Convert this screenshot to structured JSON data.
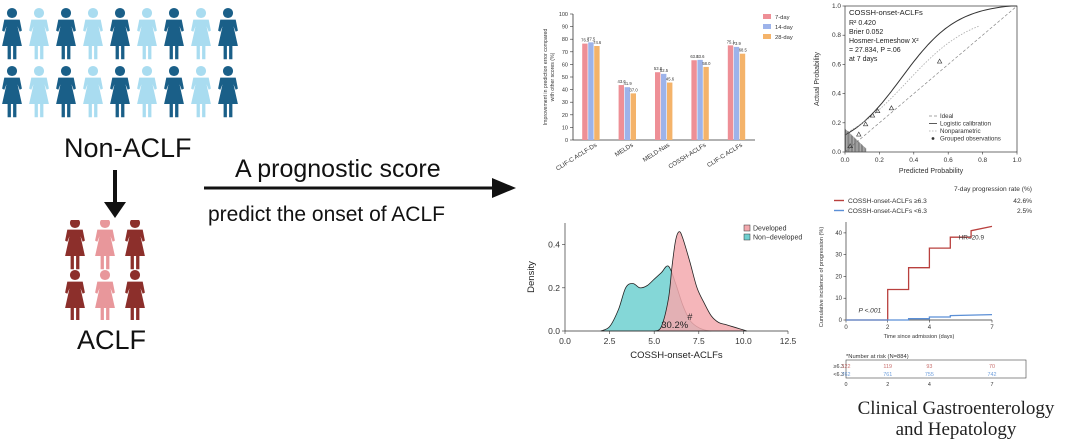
{
  "left": {
    "non_aclf_label": "Non-ACLF",
    "aclf_label": "ACLF",
    "arrow_text_1": "A prognostic score",
    "arrow_text_2": "predict the onset of ACLF",
    "colors": {
      "dark_blue": "#1a5f88",
      "light_blue": "#a9dcf0",
      "dark_red": "#8c2f2b",
      "light_red": "#e8979b"
    }
  },
  "bar_chart": {
    "chart_data": {
      "type": "bar",
      "categories": [
        "CLIF-C ACLF-Ds",
        "MELDs",
        "MELD-Nas",
        "COSSH-ACLFs",
        "CLIF-C ACLFs"
      ],
      "series": [
        {
          "name": "7-day",
          "color": "#ee8f96",
          "values": [
            76.5,
            43.6,
            53.8,
            63.3,
            75.1
          ]
        },
        {
          "name": "14-day",
          "color": "#9db3ea",
          "values": [
            77.5,
            41.9,
            52.5,
            63.6,
            73.9
          ]
        },
        {
          "name": "28-day",
          "color": "#f4b36a",
          "values": [
            74.6,
            37.0,
            45.6,
            58.0,
            68.5
          ]
        }
      ],
      "data_labels": [
        "76.5",
        "77.5",
        "74.6",
        "43.6",
        "41.9",
        "37.0",
        "53.8",
        "52.5",
        "45.6",
        "63.3",
        "63.6",
        "58.0",
        "75.1",
        "73.9",
        "68.5"
      ],
      "ylabel": "Improvement in prediction error compared with other scores (%)",
      "yticks": [
        "0",
        "10",
        "20",
        "30",
        "40",
        "50",
        "60",
        "70",
        "80",
        "90",
        "100"
      ],
      "ylim": [
        0,
        100
      ]
    }
  },
  "calibration": {
    "chart_data": {
      "type": "line",
      "title": "COSSH-onset-ACLFs",
      "stats": [
        "R²   0.420",
        "Brier 0.052",
        "Hosmer-Lemeshow X²",
        "= 27.834, P =.06",
        "at 7 days"
      ],
      "xlabel": "Predicted Probability",
      "ylabel": "Actual Probability",
      "xticks": [
        "0.0",
        "0.2",
        "0.4",
        "0.6",
        "0.8",
        "1.0"
      ],
      "yticks": [
        "0.0",
        "0.2",
        "0.4",
        "0.6",
        "0.8",
        "1.0"
      ],
      "xlim": [
        0,
        1
      ],
      "ylim": [
        0,
        1
      ],
      "legend": [
        "Ideal",
        "Logistic calibration",
        "Nonparametric",
        "Grouped observations"
      ],
      "grouped_observations": [
        [
          0.03,
          0.04
        ],
        [
          0.08,
          0.12
        ],
        [
          0.12,
          0.19
        ],
        [
          0.16,
          0.25
        ],
        [
          0.19,
          0.28
        ],
        [
          0.27,
          0.3
        ],
        [
          0.55,
          0.62
        ]
      ]
    }
  },
  "density": {
    "chart_data": {
      "type": "area",
      "xlabel": "COSSH-onset-ACLFs",
      "ylabel": "Density",
      "xticks": [
        "0.0",
        "2.5",
        "5.0",
        "7.5",
        "10.0",
        "12.5"
      ],
      "yticks": [
        "0.0",
        "0.2",
        "0.4"
      ],
      "xlim": [
        0,
        12.5
      ],
      "ylim": [
        0,
        0.5
      ],
      "legend": [
        "Developed",
        "Non−developed"
      ],
      "annotation": "30.2%",
      "marker": "#",
      "series": [
        {
          "name": "Non-developed",
          "color": "#6fd0d0",
          "x": [
            2.0,
            2.5,
            3.0,
            3.4,
            3.8,
            4.2,
            4.6,
            5.0,
            5.4,
            5.8,
            6.2,
            6.6,
            7.0,
            7.4,
            7.8,
            8.2
          ],
          "y": [
            0.0,
            0.02,
            0.1,
            0.2,
            0.22,
            0.2,
            0.21,
            0.24,
            0.27,
            0.3,
            0.22,
            0.12,
            0.05,
            0.02,
            0.005,
            0.0
          ]
        },
        {
          "name": "Developed",
          "color": "#f3a9ae",
          "x": [
            5.0,
            5.4,
            5.8,
            6.0,
            6.2,
            6.4,
            6.6,
            7.0,
            7.4,
            7.8,
            8.2,
            8.6,
            9.0,
            9.4,
            9.8,
            10.2
          ],
          "y": [
            0.0,
            0.02,
            0.15,
            0.3,
            0.42,
            0.46,
            0.43,
            0.32,
            0.2,
            0.13,
            0.07,
            0.04,
            0.03,
            0.02,
            0.01,
            0.0
          ]
        }
      ]
    }
  },
  "km": {
    "chart_data": {
      "type": "line",
      "header": "7-day progression rate (%)",
      "series": [
        {
          "name": "COSSH-onset-ACLFs ≥6.3",
          "rate": "42.6%",
          "color": "#b9403e",
          "x": [
            0,
            2,
            2,
            3,
            3,
            4,
            4,
            5,
            5,
            6,
            6,
            7
          ],
          "y": [
            0,
            0,
            14,
            14,
            24,
            24,
            33,
            33,
            38,
            38,
            41,
            43
          ]
        },
        {
          "name": "COSSH-onset-ACLFs <6.3",
          "rate": "2.5%",
          "color": "#5b8fd6",
          "x": [
            0,
            3,
            3,
            4,
            4,
            5,
            5,
            7
          ],
          "y": [
            0,
            0,
            0.6,
            0.6,
            1.4,
            1.4,
            2.0,
            2.5
          ]
        }
      ],
      "hr": "HR=20.9",
      "p": "P <.001",
      "ylabel": "Cumulative incidence of progression (%)",
      "xlabel": "Time since admission (days)",
      "xticks": [
        "0",
        "2",
        "4",
        "7"
      ],
      "yticks": [
        "0",
        "10",
        "20",
        "30",
        "40"
      ],
      "xlim": [
        0,
        7
      ],
      "ylim": [
        0,
        45
      ]
    },
    "risk_table": {
      "title": "*Number at risk (N=884)",
      "rows": [
        {
          "label": "≥6.3",
          "values": [
            "122",
            "119",
            "93",
            "70"
          ],
          "color": "#c96f6d"
        },
        {
          "label": "<6.3",
          "values": [
            "762",
            "761",
            "755",
            "742"
          ],
          "color": "#6f9fdc"
        }
      ],
      "days": [
        "0",
        "2",
        "4",
        "7"
      ]
    }
  },
  "brand": {
    "line1": "Clinical Gastroenterology",
    "line2": "and Hepatology"
  }
}
